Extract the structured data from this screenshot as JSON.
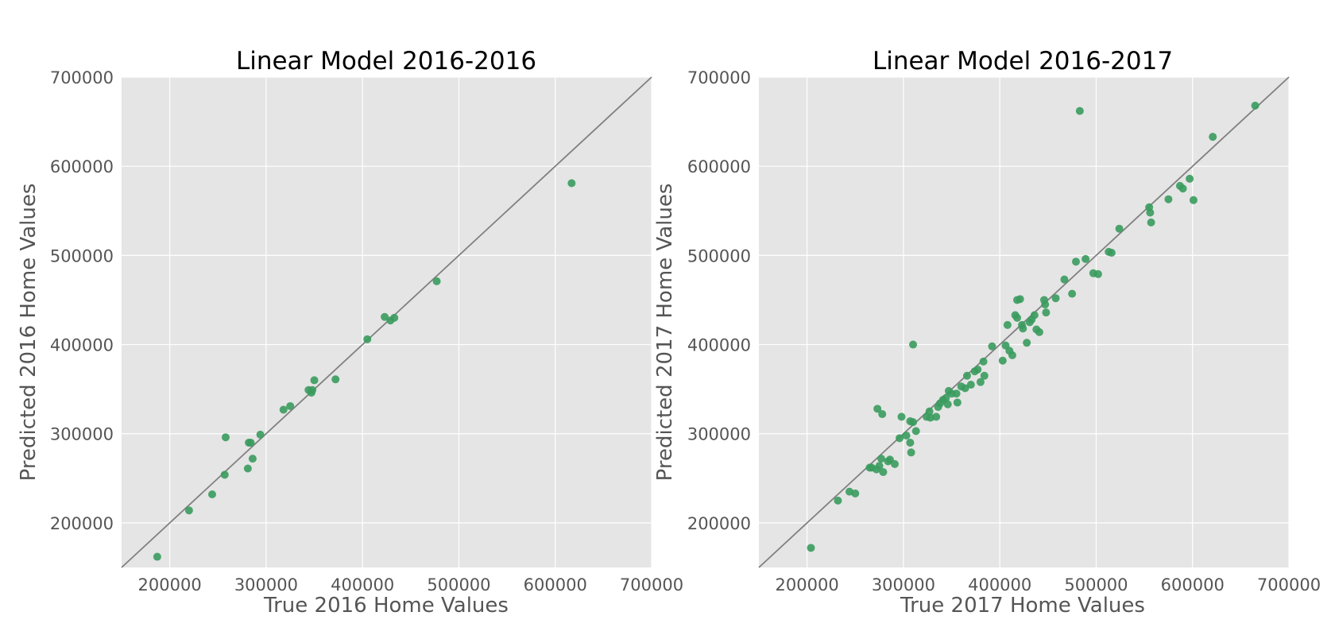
{
  "chart_data": [
    {
      "type": "scatter",
      "title": "Linear Model 2016-2016",
      "xlabel": "True 2016 Home Values",
      "ylabel": "Predicted 2016 Home Values",
      "xlim": [
        150000,
        700000
      ],
      "ylim": [
        150000,
        700000
      ],
      "xticks": [
        "200000",
        "300000",
        "400000",
        "500000",
        "600000",
        "700000"
      ],
      "yticks": [
        "200000",
        "300000",
        "400000",
        "500000",
        "600000",
        "700000"
      ],
      "grid": true,
      "reference_line": "y = x",
      "marker_color": "#3a9b5e",
      "line_color": "#808080",
      "points": [
        [
          187000,
          162000
        ],
        [
          220000,
          214000
        ],
        [
          244000,
          232000
        ],
        [
          257000,
          254000
        ],
        [
          258000,
          296000
        ],
        [
          281000,
          261000
        ],
        [
          282000,
          290000
        ],
        [
          284000,
          290000
        ],
        [
          286000,
          272000
        ],
        [
          294000,
          299000
        ],
        [
          318000,
          327000
        ],
        [
          325000,
          331000
        ],
        [
          344000,
          349000
        ],
        [
          347000,
          346000
        ],
        [
          348000,
          349000
        ],
        [
          350000,
          360000
        ],
        [
          372000,
          361000
        ],
        [
          405000,
          406000
        ],
        [
          423000,
          431000
        ],
        [
          429000,
          427000
        ],
        [
          433000,
          430000
        ],
        [
          477000,
          471000
        ],
        [
          617000,
          581000
        ]
      ]
    },
    {
      "type": "scatter",
      "title": "Linear Model 2016-2017",
      "xlabel": "True 2017 Home Values",
      "ylabel": "Predicted 2017 Home Values",
      "xlim": [
        150000,
        700000
      ],
      "ylim": [
        150000,
        700000
      ],
      "xticks": [
        "200000",
        "300000",
        "400000",
        "500000",
        "600000",
        "700000"
      ],
      "yticks": [
        "200000",
        "300000",
        "400000",
        "500000",
        "600000",
        "700000"
      ],
      "grid": true,
      "reference_line": "y = x",
      "marker_color": "#3a9b5e",
      "line_color": "#808080",
      "points": [
        [
          204000,
          172000
        ],
        [
          232000,
          225000
        ],
        [
          244000,
          235000
        ],
        [
          250000,
          233000
        ],
        [
          265000,
          262000
        ],
        [
          267000,
          262000
        ],
        [
          272000,
          260000
        ],
        [
          273000,
          328000
        ],
        [
          275000,
          264000
        ],
        [
          277000,
          272000
        ],
        [
          278000,
          322000
        ],
        [
          279000,
          257000
        ],
        [
          284000,
          269000
        ],
        [
          286000,
          271000
        ],
        [
          291000,
          266000
        ],
        [
          296000,
          295000
        ],
        [
          298000,
          319000
        ],
        [
          303000,
          298000
        ],
        [
          307000,
          290000
        ],
        [
          307000,
          314000
        ],
        [
          308000,
          279000
        ],
        [
          310000,
          313000
        ],
        [
          310000,
          400000
        ],
        [
          313000,
          303000
        ],
        [
          324000,
          319000
        ],
        [
          327000,
          325000
        ],
        [
          328000,
          318000
        ],
        [
          334000,
          319000
        ],
        [
          336000,
          330000
        ],
        [
          338000,
          334000
        ],
        [
          341000,
          338000
        ],
        [
          344000,
          340000
        ],
        [
          346000,
          333000
        ],
        [
          347000,
          348000
        ],
        [
          350000,
          345000
        ],
        [
          355000,
          345000
        ],
        [
          356000,
          335000
        ],
        [
          360000,
          353000
        ],
        [
          364000,
          351000
        ],
        [
          366000,
          365000
        ],
        [
          370000,
          355000
        ],
        [
          374000,
          370000
        ],
        [
          377000,
          372000
        ],
        [
          380000,
          358000
        ],
        [
          383000,
          381000
        ],
        [
          384000,
          365000
        ],
        [
          392000,
          398000
        ],
        [
          403000,
          382000
        ],
        [
          406000,
          399000
        ],
        [
          408000,
          422000
        ],
        [
          410000,
          393000
        ],
        [
          413000,
          388000
        ],
        [
          416000,
          433000
        ],
        [
          418000,
          430000
        ],
        [
          418000,
          450000
        ],
        [
          421000,
          451000
        ],
        [
          423000,
          422000
        ],
        [
          424000,
          418000
        ],
        [
          428000,
          402000
        ],
        [
          431000,
          425000
        ],
        [
          433000,
          428000
        ],
        [
          436000,
          433000
        ],
        [
          438000,
          417000
        ],
        [
          441000,
          414000
        ],
        [
          446000,
          450000
        ],
        [
          447000,
          445000
        ],
        [
          448000,
          436000
        ],
        [
          458000,
          452000
        ],
        [
          467000,
          473000
        ],
        [
          475000,
          457000
        ],
        [
          479000,
          493000
        ],
        [
          483000,
          662000
        ],
        [
          489000,
          496000
        ],
        [
          497000,
          480000
        ],
        [
          502000,
          479000
        ],
        [
          513000,
          504000
        ],
        [
          516000,
          503000
        ],
        [
          524000,
          530000
        ],
        [
          555000,
          554000
        ],
        [
          556000,
          548000
        ],
        [
          557000,
          537000
        ],
        [
          575000,
          563000
        ],
        [
          587000,
          578000
        ],
        [
          590000,
          575000
        ],
        [
          597000,
          586000
        ],
        [
          601000,
          562000
        ],
        [
          621000,
          633000
        ],
        [
          665000,
          668000
        ]
      ]
    }
  ]
}
